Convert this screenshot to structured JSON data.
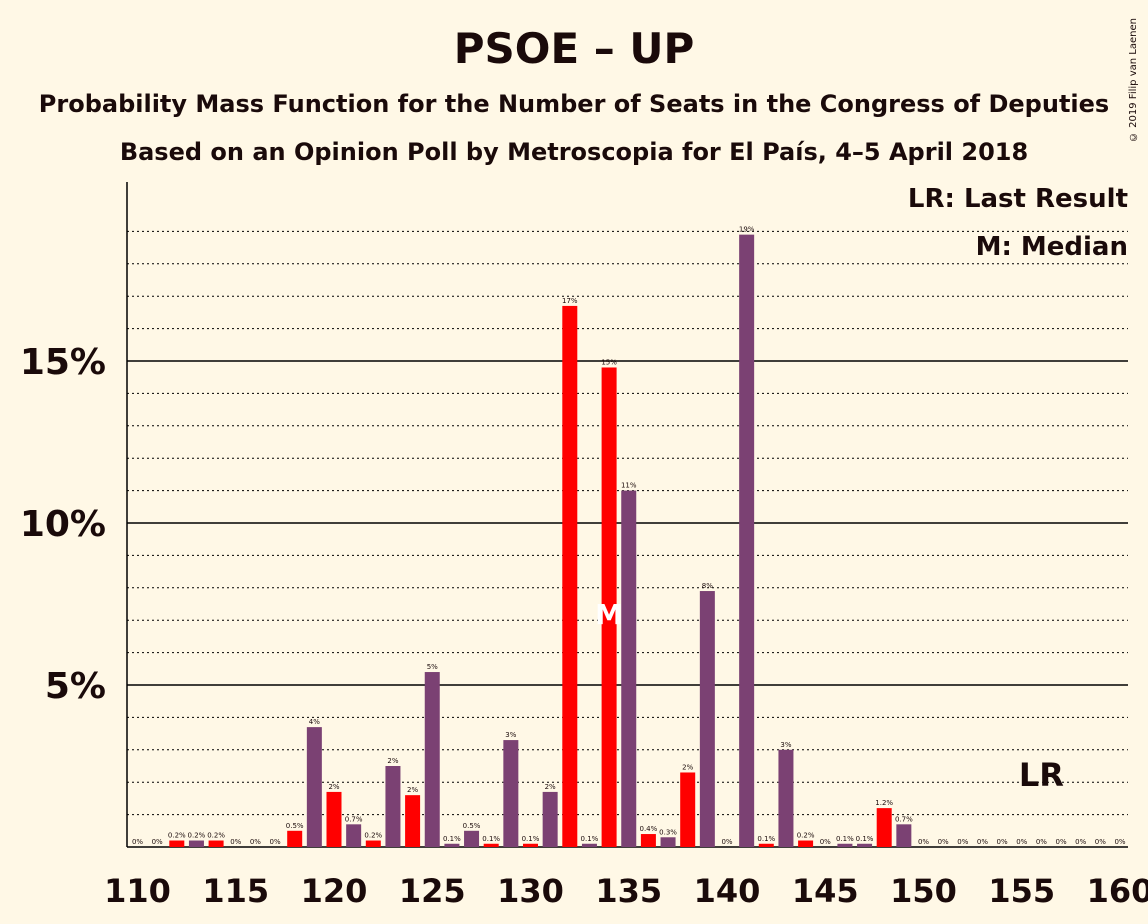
{
  "title": "PSOE – UP",
  "subtitle": "Probability Mass Function for the Number of Seats in the Congress of Deputies",
  "subtitle2": "Based on an Opinion Poll by Metroscopia for El País, 4–5 April 2018",
  "copyright": "© 2019 Filip van Laenen",
  "legend": {
    "lr": "LR: Last Result",
    "median": "M: Median"
  },
  "markers": {
    "lr": "LR",
    "median": "M"
  },
  "colors": {
    "background": "#FFF8E6",
    "purple": "#7B4173",
    "red": "#FF0000",
    "text": "#1a0a0a"
  },
  "chart_data": {
    "type": "bar",
    "x": [
      110,
      111,
      112,
      113,
      114,
      115,
      116,
      117,
      118,
      119,
      120,
      121,
      122,
      123,
      124,
      125,
      126,
      127,
      128,
      129,
      130,
      131,
      132,
      133,
      134,
      135,
      136,
      137,
      138,
      139,
      140,
      141,
      142,
      143,
      144,
      145,
      146,
      147,
      148,
      149,
      150,
      151,
      152,
      153,
      154,
      155,
      156,
      157,
      158,
      159,
      160
    ],
    "values": [
      0,
      0,
      0.2,
      0.2,
      0.2,
      0,
      0,
      0,
      0.5,
      3.7,
      1.7,
      0.7,
      0.2,
      2.5,
      1.6,
      5.4,
      0.1,
      0.5,
      0.1,
      3.3,
      0.1,
      1.7,
      16.7,
      0.1,
      14.8,
      11.0,
      0.4,
      0.3,
      2.3,
      7.9,
      0,
      18.9,
      0.1,
      3.0,
      0.2,
      0,
      0.1,
      0.1,
      1.2,
      0.7,
      0,
      0,
      0,
      0,
      0,
      0,
      0,
      0,
      0,
      0,
      0
    ],
    "labels": [
      "0%",
      "0%",
      "0.2%",
      "0.2%",
      "0.2%",
      "0%",
      "0%",
      "0%",
      "0.5%",
      "4%",
      "2%",
      "0.7%",
      "0.2%",
      "2%",
      "2%",
      "5%",
      "0.1%",
      "0.5%",
      "0.1%",
      "3%",
      "0.1%",
      "2%",
      "17%",
      "0.1%",
      "15%",
      "11%",
      "0.4%",
      "0.3%",
      "2%",
      "8%",
      "0%",
      "19%",
      "0.1%",
      "3%",
      "0.2%",
      "0%",
      "0.1%",
      "0.1%",
      "1.2%",
      "0.7%",
      "0%",
      "0%",
      "0%",
      "0%",
      "0%",
      "0%",
      "0%",
      "0%",
      "0%",
      "0%",
      "0%"
    ],
    "colors": [
      "purple",
      "purple",
      "red",
      "purple",
      "red",
      "purple",
      "purple",
      "purple",
      "red",
      "purple",
      "red",
      "purple",
      "red",
      "purple",
      "red",
      "purple",
      "purple",
      "purple",
      "red",
      "purple",
      "red",
      "purple",
      "red",
      "purple",
      "red",
      "purple",
      "red",
      "purple",
      "red",
      "purple",
      "purple",
      "purple",
      "red",
      "purple",
      "red",
      "purple",
      "purple",
      "purple",
      "red",
      "purple",
      "purple",
      "purple",
      "purple",
      "purple",
      "purple",
      "purple",
      "purple",
      "purple",
      "purple",
      "purple",
      "purple"
    ],
    "x_ticks": [
      "110",
      "115",
      "120",
      "125",
      "130",
      "135",
      "140",
      "145",
      "150",
      "155",
      "160"
    ],
    "y_ticks": [
      "5%",
      "10%",
      "15%"
    ],
    "ylim": [
      0,
      20.6
    ],
    "median_seat": 134,
    "last_result_seat": 156,
    "grid": true
  }
}
